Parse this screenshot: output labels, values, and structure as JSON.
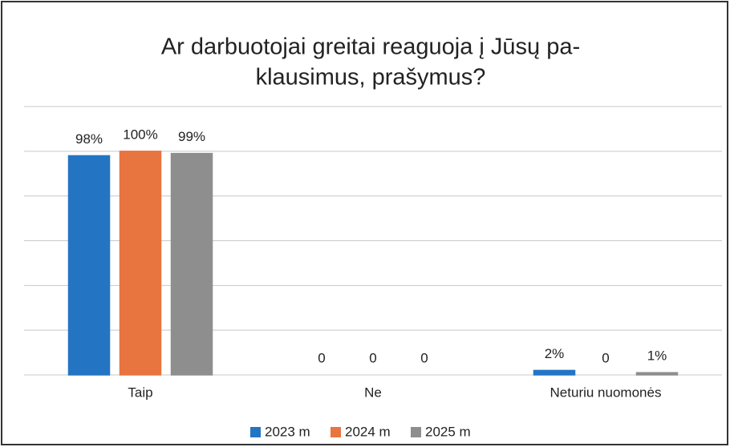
{
  "chart_data": {
    "type": "bar",
    "title_lines": [
      "Ar darbuotojai greitai reaguoja į Jūsų pa-",
      "klausimus, prašymus?"
    ],
    "categories": [
      "Taip",
      "Ne",
      "Neturiu nuomonės"
    ],
    "series": [
      {
        "name": "2023 m",
        "color": "#2474c4",
        "values": [
          98,
          0,
          2
        ],
        "value_labels": [
          "98%",
          "0",
          "2%"
        ]
      },
      {
        "name": "2024 m",
        "color": "#e8743f",
        "values": [
          100,
          0,
          0
        ],
        "value_labels": [
          "100%",
          "0",
          "0"
        ]
      },
      {
        "name": "2025 m",
        "color": "#8e8e8e",
        "values": [
          99,
          0,
          1
        ],
        "value_labels": [
          "99%",
          "0",
          "1%"
        ]
      }
    ],
    "ylim": [
      0,
      120
    ],
    "yticks": [
      0,
      20,
      40,
      60,
      80,
      100,
      120
    ],
    "grid": true,
    "legend": "bottom"
  }
}
